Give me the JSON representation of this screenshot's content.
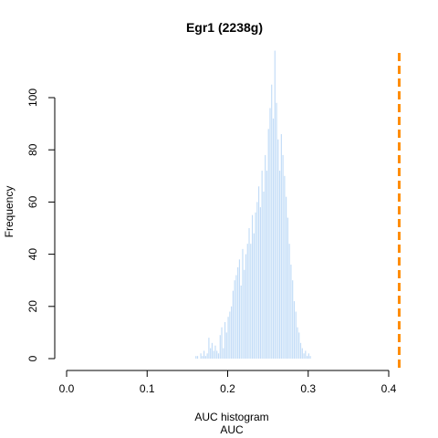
{
  "chart_data": {
    "type": "bar",
    "title": "Egr1 (2238g)",
    "xlabel": "AUC",
    "subtitle": "AUC histogram",
    "ylabel": "Frequency",
    "xlim": [
      0,
      0.4
    ],
    "ylim": [
      0,
      115
    ],
    "xticks": [
      0.0,
      0.1,
      0.2,
      0.3,
      0.4
    ],
    "xtick_labels": [
      "0.0",
      "0.1",
      "0.2",
      "0.3",
      "0.4"
    ],
    "yticks": [
      0,
      20,
      40,
      60,
      80,
      100
    ],
    "bin_width": 0.002,
    "bin_start": 0.16,
    "values": [
      1,
      1,
      0,
      2,
      1,
      3,
      1,
      2,
      8,
      4,
      6,
      3,
      5,
      3,
      2,
      9,
      12,
      4,
      14,
      10,
      16,
      18,
      20,
      26,
      30,
      32,
      35,
      38,
      28,
      42,
      34,
      40,
      44,
      50,
      44,
      55,
      48,
      56,
      60,
      66,
      58,
      72,
      64,
      78,
      72,
      88,
      96,
      105,
      92,
      118,
      98,
      84,
      72,
      86,
      78,
      70,
      62,
      54,
      44,
      36,
      30,
      22,
      18,
      12,
      10,
      6,
      4,
      2,
      3,
      1,
      2,
      1
    ],
    "threshold": 0.413,
    "bar_color": "#c2dcf7",
    "threshold_color": "#ff8c00"
  }
}
